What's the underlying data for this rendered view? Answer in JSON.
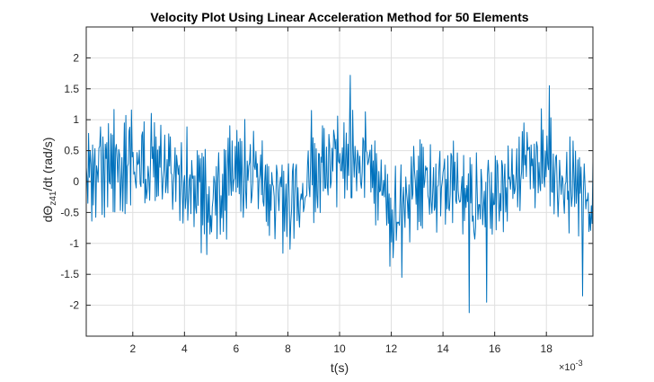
{
  "chart_data": {
    "type": "line",
    "title": "Velocity Plot Using Linear Acceleration Method for 50 Elements",
    "xlabel": "t(s)",
    "ylabel": {
      "prefix": "dΘ",
      "subscript": "z41",
      "suffix": "/dt  (rad/s)"
    },
    "x_exponent_label": "×10",
    "x_exponent_power": "-3",
    "xlim": [
      0.0002,
      0.0198
    ],
    "ylim": [
      -2.5,
      2.5
    ],
    "x_ticks": [
      0.002,
      0.004,
      0.006,
      0.008,
      0.01,
      0.012,
      0.014,
      0.016,
      0.018
    ],
    "x_tick_labels": [
      "2",
      "4",
      "6",
      "8",
      "10",
      "12",
      "14",
      "16",
      "18"
    ],
    "y_ticks": [
      2,
      1.5,
      1,
      0.5,
      0,
      -0.5,
      -1,
      -1.5,
      -2
    ],
    "y_tick_labels": [
      "2",
      "1.5",
      "1",
      "0.5",
      "0",
      "-0.5",
      "-1",
      "-1.5",
      "-2"
    ],
    "grid": true,
    "line_color": "#0072BD",
    "series": [
      {
        "x_start": 0.0002,
        "x_end": 0.0198,
        "sample_count": 640,
        "envelope": [
          [
            0.0002,
            0.0
          ],
          [
            0.001,
            0.25
          ],
          [
            0.002,
            0.35
          ],
          [
            0.003,
            0.3
          ],
          [
            0.004,
            0.05
          ],
          [
            0.005,
            -0.35
          ],
          [
            0.006,
            0.2
          ],
          [
            0.007,
            0.05
          ],
          [
            0.008,
            -0.35
          ],
          [
            0.009,
            0.15
          ],
          [
            0.01,
            0.45
          ],
          [
            0.011,
            0.25
          ],
          [
            0.012,
            -0.55
          ],
          [
            0.013,
            -0.15
          ],
          [
            0.014,
            0.1
          ],
          [
            0.015,
            -0.35
          ],
          [
            0.016,
            -0.2
          ],
          [
            0.017,
            0.25
          ],
          [
            0.018,
            0.35
          ],
          [
            0.019,
            -0.1
          ],
          [
            0.0198,
            -0.25
          ]
        ],
        "peaks": [
          [
            0.0104,
            1.72
          ],
          [
            0.015,
            -2.12
          ],
          [
            0.0181,
            1.55
          ],
          [
            0.0124,
            -1.55
          ],
          [
            0.0157,
            -1.95
          ],
          [
            0.0194,
            -1.85
          ],
          [
            0.0089,
            1.15
          ]
        ]
      }
    ]
  }
}
